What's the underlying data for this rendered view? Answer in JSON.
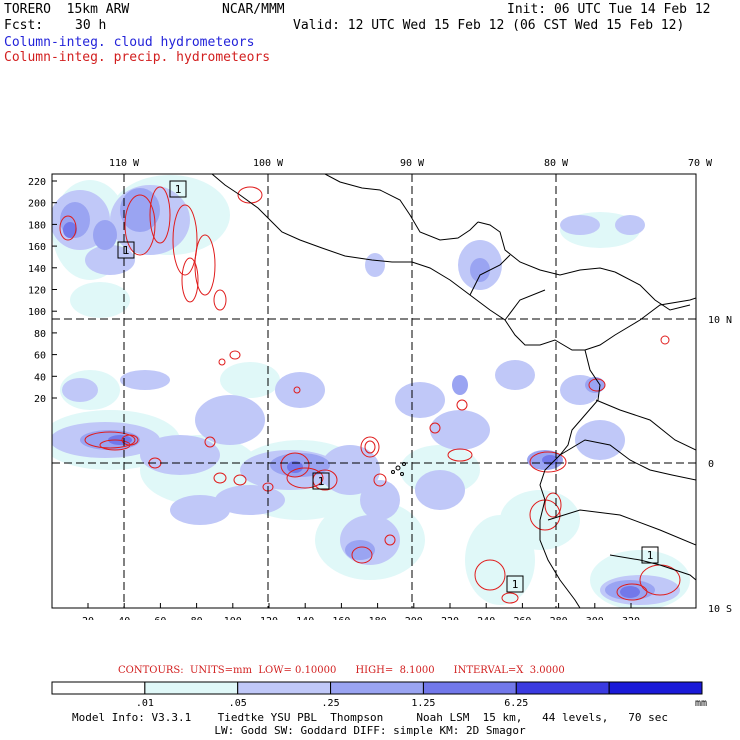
{
  "header": {
    "model": "TORERO  15km ARW",
    "org": "NCAR/MMM",
    "init": "Init: 06 UTC Tue 14 Feb 12",
    "fcst_label": "Fcst:",
    "fcst_value": "30 h",
    "valid": "Valid: 12 UTC Wed 15 Feb 12 (06 CST Wed 15 Feb 12)",
    "field1": "Column-integ. cloud hydrometeors",
    "field2": "Column-integ. precip. hydrometeors"
  },
  "map": {
    "lon_labels": [
      "110 W",
      "100 W",
      "90 W",
      "80 W",
      "70 W"
    ],
    "lat_labels": [
      "10 N",
      "0",
      "10 S"
    ],
    "y_ticks": [
      "220",
      "200",
      "180",
      "160",
      "140",
      "120",
      "100",
      "80",
      "60",
      "40",
      "20"
    ],
    "x_ticks": [
      "20",
      "40",
      "60",
      "80",
      "100",
      "120",
      "140",
      "160",
      "180",
      "200",
      "220",
      "240",
      "260",
      "280",
      "300",
      "320"
    ],
    "colors": {
      "c1": "#e0f8f8",
      "c2": "#c0c8f8",
      "c3": "#9aa4f2",
      "c4": "#7278ea",
      "c5": "#3a3ae0",
      "contour": "#e01c1c",
      "coast": "#000000",
      "grid": "#000000"
    },
    "box_label": "1"
  },
  "colorbar": {
    "labels": [
      ".01",
      ".05",
      ".25",
      "1.25",
      "6.25"
    ],
    "unit": "mm",
    "colors": [
      "#ffffff",
      "#e0f8f8",
      "#c0c8f8",
      "#9aa4f2",
      "#7278ea",
      "#3a3ae0",
      "#1a1ad8"
    ]
  },
  "contour_info": "CONTOURS:  UNITS=mm  LOW= 0.10000      HIGH=  8.1000      INTERVAL=X  3.0000",
  "footer": {
    "line1": "Model Info: V3.3.1    Tiedtke YSU PBL  Thompson     Noah LSM  15 km,   44 levels,   70 sec",
    "line2": "LW: Godd SW: Goddard DIFF: simple KM: 2D Smagor"
  }
}
